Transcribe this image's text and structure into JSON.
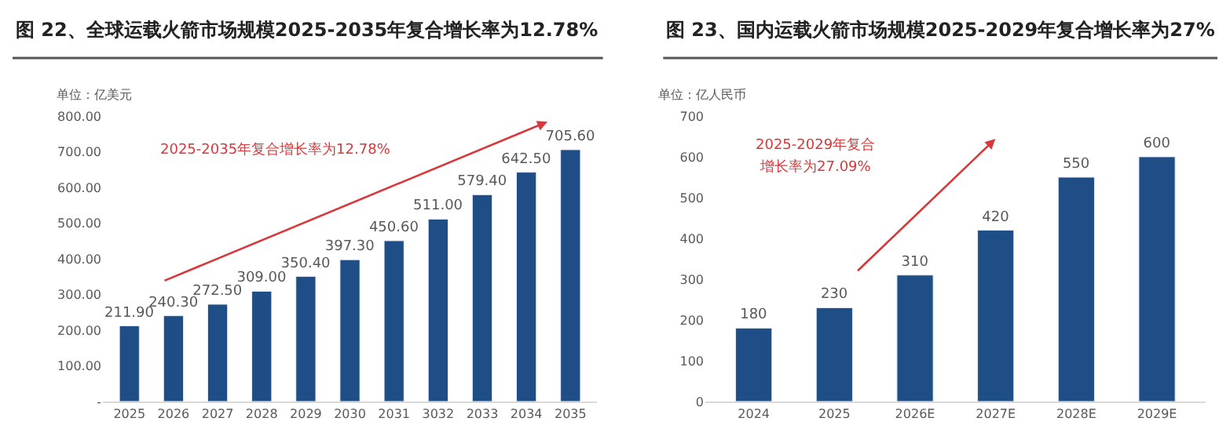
{
  "chart_data": [
    {
      "type": "bar",
      "title": "图 22、全球运载火箭市场规模2025-2035年复合增长率为12.78%",
      "ylabel": "单位：亿美元",
      "categories": [
        "2025",
        "2026",
        "2027",
        "2028",
        "2029",
        "2030",
        "2031",
        "3032",
        "2033",
        "2034",
        "2035"
      ],
      "values": [
        211.9,
        240.3,
        272.5,
        309.0,
        350.4,
        397.3,
        450.6,
        511.0,
        579.4,
        642.5,
        705.6
      ],
      "value_labels": [
        "211.90",
        "240.30",
        "272.50",
        "309.00",
        "350.40",
        "397.30",
        "450.60",
        "511.00",
        "579.40",
        "642.50",
        "705.60"
      ],
      "color": "#1f4e86",
      "ylim": [
        0,
        800
      ],
      "yticks": [
        {
          "value": 0,
          "label": "-"
        },
        {
          "value": 100,
          "label": "100.00"
        },
        {
          "value": 200,
          "label": "200.00"
        },
        {
          "value": 300,
          "label": "300.00"
        },
        {
          "value": 400,
          "label": "400.00"
        },
        {
          "value": 500,
          "label": "500.00"
        },
        {
          "value": 600,
          "label": "600.00"
        },
        {
          "value": 700,
          "label": "700.00"
        },
        {
          "value": 800,
          "label": "800.00"
        }
      ],
      "annotations": [
        "2025-2035年复合增长率为12.78%"
      ]
    },
    {
      "type": "bar",
      "title": "图 23、国内运载火箭市场规模2025-2029年复合增长率为27%",
      "ylabel": "单位：亿人民币",
      "categories": [
        "2024",
        "2025",
        "2026E",
        "2027E",
        "2028E",
        "2029E"
      ],
      "values": [
        180,
        230,
        310,
        420,
        550,
        600
      ],
      "data_labels": true,
      "color": "#1f4e86",
      "ylim": [
        0,
        700
      ],
      "yticks": [
        0,
        100,
        200,
        300,
        400,
        500,
        600,
        700
      ],
      "annotations": [
        "2025-2029年复合",
        "增长率为27.09%"
      ]
    }
  ]
}
